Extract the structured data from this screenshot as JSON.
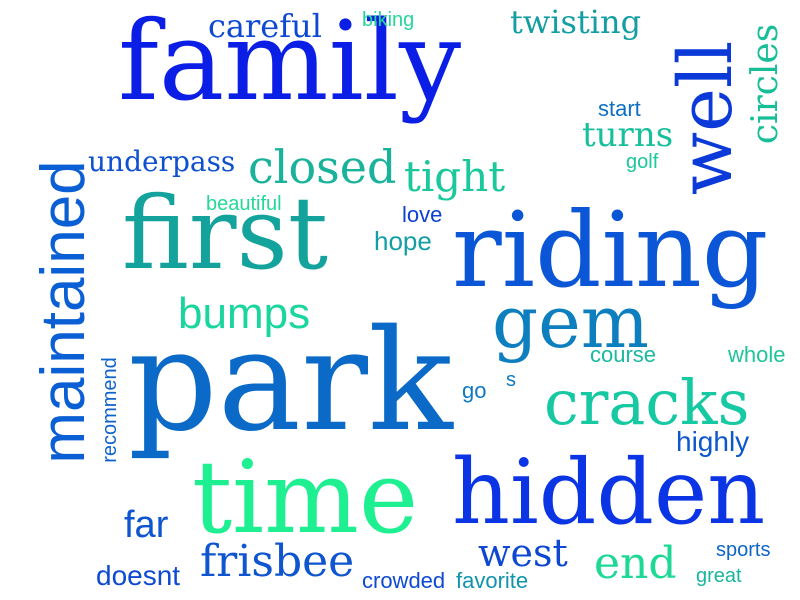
{
  "words": [
    {
      "text": "family",
      "color": "#0a1ee6",
      "rotate": false
    },
    {
      "text": "park",
      "color": "#0b6ac8",
      "rotate": false
    },
    {
      "text": "riding",
      "color": "#0b56d6",
      "rotate": false
    },
    {
      "text": "first",
      "color": "#14a39c",
      "rotate": false
    },
    {
      "text": "time",
      "color": "#1ef092",
      "rotate": false
    },
    {
      "text": "hidden",
      "color": "#0a34e4",
      "rotate": false
    },
    {
      "text": "maintained",
      "color": "#0b5fd4",
      "rotate": true
    },
    {
      "text": "well",
      "color": "#0c3ad8",
      "rotate": true
    },
    {
      "text": "gem",
      "color": "#0e7fbe",
      "rotate": false
    },
    {
      "text": "cracks",
      "color": "#16c9a3",
      "rotate": false
    },
    {
      "text": "closed",
      "color": "#18b39a",
      "rotate": false
    },
    {
      "text": "careful",
      "color": "#0d49d5",
      "rotate": false
    },
    {
      "text": "twisting",
      "color": "#139ea2",
      "rotate": false
    },
    {
      "text": "circles",
      "color": "#18be98",
      "rotate": true
    },
    {
      "text": "bumps",
      "color": "#1ad59e",
      "rotate": false
    },
    {
      "text": "tight",
      "color": "#1ac89c",
      "rotate": false
    },
    {
      "text": "turns",
      "color": "#17bf9b",
      "rotate": false
    },
    {
      "text": "underpass",
      "color": "#0e50d0",
      "rotate": false
    },
    {
      "text": "biking",
      "color": "#24d69a",
      "rotate": false
    },
    {
      "text": "start",
      "color": "#0e6ec6",
      "rotate": false
    },
    {
      "text": "golf",
      "color": "#1cc79c",
      "rotate": false
    },
    {
      "text": "beautiful",
      "color": "#24d898",
      "rotate": false
    },
    {
      "text": "love",
      "color": "#0d3fd5",
      "rotate": false
    },
    {
      "text": "hope",
      "color": "#159fa4",
      "rotate": false
    },
    {
      "text": "recommend",
      "color": "#0f63cb",
      "rotate": true
    },
    {
      "text": "course",
      "color": "#1ab9a0",
      "rotate": false
    },
    {
      "text": "whole",
      "color": "#20c49a",
      "rotate": false
    },
    {
      "text": "go",
      "color": "#0e78c4",
      "rotate": false
    },
    {
      "text": "s",
      "color": "#0e7bc1",
      "rotate": false
    },
    {
      "text": "highly",
      "color": "#0d57cd",
      "rotate": false
    },
    {
      "text": "far",
      "color": "#0e55cf",
      "rotate": false
    },
    {
      "text": "west",
      "color": "#0e48d2",
      "rotate": false
    },
    {
      "text": "end",
      "color": "#1ed895",
      "rotate": false
    },
    {
      "text": "frisbee",
      "color": "#0e55cf",
      "rotate": false
    },
    {
      "text": "doesnt",
      "color": "#0e49d2",
      "rotate": false
    },
    {
      "text": "crowded",
      "color": "#0e4ad2",
      "rotate": false
    },
    {
      "text": "favorite",
      "color": "#1094ad",
      "rotate": false
    },
    {
      "text": "sports",
      "color": "#0e66c9",
      "rotate": false
    },
    {
      "text": "great",
      "color": "#1ab59f",
      "rotate": false
    }
  ]
}
